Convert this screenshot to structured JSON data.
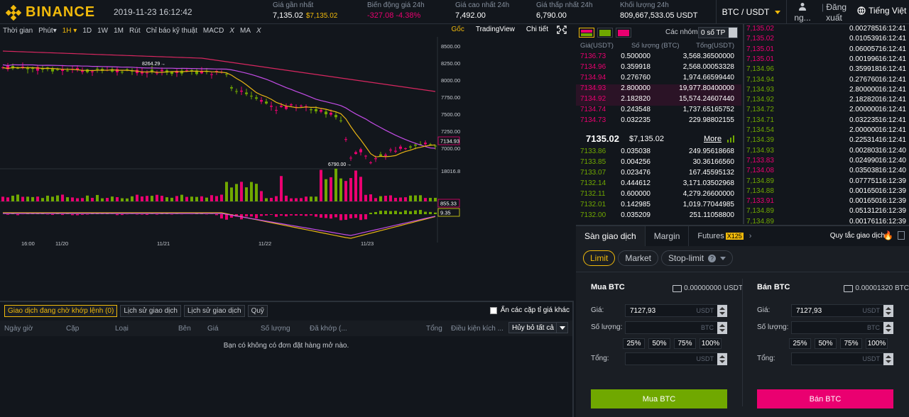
{
  "header": {
    "logo_text": "BINANCE",
    "datetime": "2019-11-23 16:12:42",
    "last_price_label": "Giá gần nhất",
    "last_price": "7,135.02",
    "last_price_usd": "$7,135.02",
    "change_label": "Biến động giá 24h",
    "change_value": "-327.08",
    "change_pct": "-4.38%",
    "high_label": "Giá cao nhất 24h",
    "high_value": "7,492.00",
    "low_label": "Giá thấp nhất 24h",
    "low_value": "6,790.00",
    "volume_label": "Khối lượng 24h",
    "volume_value": "809,667,533.05 USDT",
    "pair": "BTC / USDT",
    "user": "ng...",
    "logout": "Đăng xuất",
    "language": "Tiếng Việt",
    "colors": {
      "accent": "#f0b90b",
      "up": "#70a800",
      "down": "#ea0070"
    }
  },
  "chart_toolbar": {
    "items": [
      "Thời gian",
      "Phút▾",
      "1H ▾",
      "1D",
      "1W",
      "1M",
      "Rút",
      "Chỉ báo kỹ thuật",
      "MACD",
      "X",
      "MA",
      "X"
    ],
    "active": "1H ▾",
    "right": [
      "Gốc",
      "TradingView",
      "Chi tiết"
    ]
  },
  "chart_labels": {
    "price_ticks": [
      "8500.00",
      "8250.00",
      "8000.00",
      "7750.00",
      "7500.00",
      "7250.00",
      "7000.00"
    ],
    "current_price_tag": "7134.93",
    "high_marker": "8264.29",
    "low_marker": "6790.00",
    "volume_axis": "18016.8",
    "volume_tag": "855.33",
    "macd_tag": "9.35",
    "time_ticks": [
      "16:00",
      "11/20",
      "11/21",
      "11/22",
      "11/23"
    ]
  },
  "orders": {
    "tabs": [
      "Giao dịch đang chờ khớp lệnh (0)",
      "Lịch sử giao dịch",
      "Lịch sử giao dịch",
      "Quỹ"
    ],
    "hide_pairs": "Ẩn các cặp tỉ giá khác",
    "columns": [
      "Ngày giờ",
      "Cặp",
      "Loại",
      "Bên",
      "Giá",
      "Số lượng",
      "Đã khớp (...",
      "Tổng",
      "Điều kiện kích ..."
    ],
    "cancel_all": "Hủy bỏ tất cả",
    "empty": "Bạn có không có đơn đặt hàng mở nào."
  },
  "orderbook": {
    "group_label": "Các nhóm",
    "group_value": "0 số TP",
    "headers": [
      "Giá(USDT)",
      "Số lượng (BTC)",
      "Tổng(USDT)"
    ],
    "asks": [
      [
        "7136.73",
        "0.500000",
        "3,568.36500000"
      ],
      [
        "7134.96",
        "0.359918",
        "2,568.00053328"
      ],
      [
        "7134.94",
        "0.276760",
        "1,974.66599440"
      ],
      [
        "7134.93",
        "2.800000",
        "19,977.80400000"
      ],
      [
        "7134.92",
        "2.182820",
        "15,574.24607440"
      ],
      [
        "7134.74",
        "0.243548",
        "1,737.65165752"
      ],
      [
        "7134.73",
        "0.032235",
        "229.98802155"
      ]
    ],
    "mid_price": "7135.02",
    "mid_usd": "$7,135.02",
    "more": "More",
    "bids": [
      [
        "7133.86",
        "0.035038",
        "249.95618668"
      ],
      [
        "7133.85",
        "0.004256",
        "30.36166560"
      ],
      [
        "7133.07",
        "0.023476",
        "167.45595132"
      ],
      [
        "7132.14",
        "0.444612",
        "3,171.03502968"
      ],
      [
        "7132.11",
        "0.600000",
        "4,279.26600000"
      ],
      [
        "7132.01",
        "0.142985",
        "1,019.77044985"
      ],
      [
        "7132.00",
        "0.035209",
        "251.11058800"
      ]
    ]
  },
  "trades": [
    [
      "7,135.02",
      "0.002785",
      "16:12:41",
      "down"
    ],
    [
      "7,135.02",
      "0.010539",
      "16:12:41",
      "down"
    ],
    [
      "7,135.01",
      "0.060057",
      "16:12:41",
      "down"
    ],
    [
      "7,135.01",
      "0.001996",
      "16:12:41",
      "down"
    ],
    [
      "7,134.96",
      "0.359918",
      "16:12:41",
      "up"
    ],
    [
      "7,134.94",
      "0.276760",
      "16:12:41",
      "up"
    ],
    [
      "7,134.93",
      "2.800000",
      "16:12:41",
      "up"
    ],
    [
      "7,134.92",
      "2.182820",
      "16:12:41",
      "up"
    ],
    [
      "7,134.72",
      "2.000000",
      "16:12:41",
      "up"
    ],
    [
      "7,134.71",
      "0.032235",
      "16:12:41",
      "up"
    ],
    [
      "7,134.54",
      "2.000000",
      "16:12:41",
      "up"
    ],
    [
      "7,134.39",
      "0.225314",
      "16:12:41",
      "up"
    ],
    [
      "7,134.93",
      "0.002803",
      "16:12:40",
      "up"
    ],
    [
      "7,133.83",
      "0.024990",
      "16:12:40",
      "down"
    ],
    [
      "7,134.08",
      "0.035038",
      "16:12:40",
      "down"
    ],
    [
      "7,134.89",
      "0.077751",
      "16:12:39",
      "up"
    ],
    [
      "7,134.88",
      "0.001650",
      "16:12:39",
      "up"
    ],
    [
      "7,133.91",
      "0.001650",
      "16:12:39",
      "down"
    ],
    [
      "7,134.89",
      "0.051312",
      "16:12:39",
      "up"
    ],
    [
      "7,134.89",
      "0.001761",
      "16:12:39",
      "up"
    ]
  ],
  "trade_form": {
    "tabs": [
      "Sàn giao dịch",
      "Margin",
      "Futures"
    ],
    "futures_badge": "X125",
    "rules": "Quy tắc giao dịch",
    "order_types": [
      "Limit",
      "Market",
      "Stop-limit"
    ],
    "buy": {
      "title": "Mua BTC",
      "balance": "0.00000000 USDT",
      "price_label": "Giá:",
      "price": "7127,93",
      "price_unit": "USDT",
      "amount_label": "Số lượng:",
      "amount_unit": "BTC",
      "total_label": "Tổng:",
      "total_unit": "USDT",
      "button": "Mua BTC"
    },
    "sell": {
      "title": "Bán BTC",
      "balance": "0.00001320 BTC",
      "price_label": "Giá:",
      "price": "7127,93",
      "price_unit": "USDT",
      "amount_label": "Số lượng:",
      "amount_unit": "BTC",
      "total_label": "Tổng:",
      "total_unit": "USDT",
      "button": "Bán BTC"
    },
    "percents": [
      "25%",
      "50%",
      "75%",
      "100%"
    ]
  }
}
